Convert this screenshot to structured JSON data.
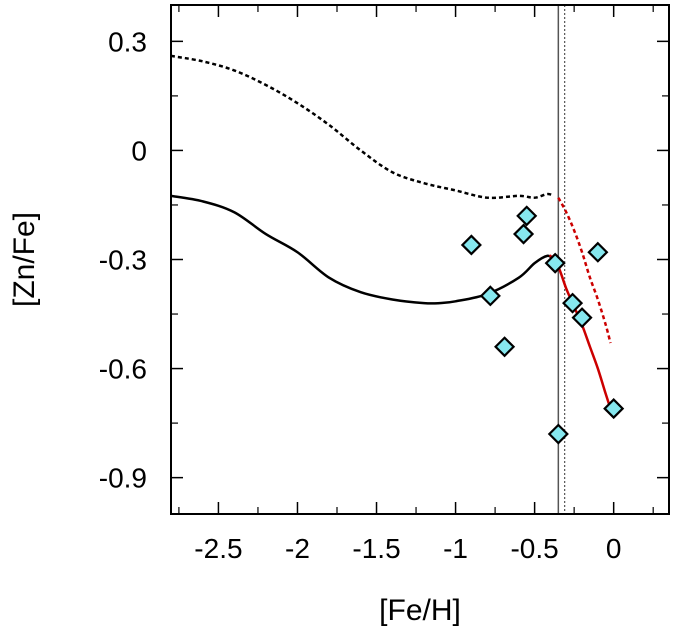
{
  "chart_data": {
    "type": "scatter",
    "xlabel": "[Fe/H]",
    "ylabel": "[Zn/Fe]",
    "xlim": [
      -2.8,
      0.35
    ],
    "ylim": [
      -1.0,
      0.4
    ],
    "x_ticks": [
      {
        "value": -2.5,
        "label": "-2.5"
      },
      {
        "value": -2.0,
        "label": "-2"
      },
      {
        "value": -1.5,
        "label": "-1.5"
      },
      {
        "value": -1.0,
        "label": "-1"
      },
      {
        "value": -0.5,
        "label": "-0.5"
      },
      {
        "value": 0.0,
        "label": "0"
      }
    ],
    "x_minor_ticks": [
      -2.75,
      -2.25,
      -1.75,
      -1.25,
      -0.75,
      -0.25,
      0.25
    ],
    "y_ticks": [
      {
        "value": 0.3,
        "label": "0.3"
      },
      {
        "value": 0.0,
        "label": "0"
      },
      {
        "value": -0.3,
        "label": "-0.3"
      },
      {
        "value": -0.6,
        "label": "-0.6"
      },
      {
        "value": -0.9,
        "label": "-0.9"
      }
    ],
    "y_minor_ticks": [
      0.15,
      -0.15,
      -0.45,
      -0.75
    ],
    "vertical_lines": [
      {
        "name": "vline-solid",
        "x": -0.35,
        "style": "solid",
        "color": "#555555"
      },
      {
        "name": "vline-dotted",
        "x": -0.31,
        "style": "dotted",
        "color": "#555555"
      }
    ],
    "series": [
      {
        "name": "model-black-dashed",
        "style": "dashed",
        "color": "#000000",
        "x": [
          -2.8,
          -2.6,
          -2.4,
          -2.2,
          -2.0,
          -1.8,
          -1.6,
          -1.4,
          -1.2,
          -1.0,
          -0.8,
          -0.6,
          -0.5,
          -0.42,
          -0.38
        ],
        "y": [
          0.26,
          0.245,
          0.22,
          0.18,
          0.13,
          0.07,
          0.0,
          -0.06,
          -0.09,
          -0.11,
          -0.13,
          -0.125,
          -0.13,
          -0.12,
          -0.125
        ]
      },
      {
        "name": "model-red-dashed",
        "style": "dashed",
        "color": "#cc0000",
        "x": [
          -0.35,
          -0.3,
          -0.25,
          -0.2,
          -0.15,
          -0.1,
          -0.05,
          -0.02
        ],
        "y": [
          -0.13,
          -0.17,
          -0.22,
          -0.28,
          -0.35,
          -0.41,
          -0.48,
          -0.53
        ]
      },
      {
        "name": "model-black-solid",
        "style": "solid",
        "color": "#000000",
        "x": [
          -2.8,
          -2.6,
          -2.4,
          -2.2,
          -2.0,
          -1.8,
          -1.6,
          -1.4,
          -1.2,
          -1.1,
          -1.0,
          -0.8,
          -0.6,
          -0.5,
          -0.42,
          -0.38
        ],
        "y": [
          -0.125,
          -0.14,
          -0.17,
          -0.23,
          -0.28,
          -0.35,
          -0.39,
          -0.41,
          -0.42,
          -0.42,
          -0.415,
          -0.395,
          -0.35,
          -0.31,
          -0.29,
          -0.3
        ]
      },
      {
        "name": "model-red-solid",
        "style": "solid",
        "color": "#cc0000",
        "x": [
          -0.4,
          -0.35,
          -0.3,
          -0.25,
          -0.2,
          -0.15,
          -0.1,
          -0.05,
          -0.02
        ],
        "y": [
          -0.29,
          -0.32,
          -0.38,
          -0.43,
          -0.48,
          -0.54,
          -0.6,
          -0.67,
          -0.71
        ]
      }
    ],
    "points": {
      "name": "observed-stars",
      "marker": "diamond",
      "fill": "#86e8ef",
      "stroke": "#000000",
      "x": [
        -0.9,
        -0.78,
        -0.69,
        -0.57,
        -0.55,
        -0.37,
        -0.35,
        -0.26,
        -0.2,
        -0.1,
        0.0
      ],
      "y": [
        -0.26,
        -0.4,
        -0.54,
        -0.23,
        -0.18,
        -0.31,
        -0.78,
        -0.42,
        -0.46,
        -0.28,
        -0.71
      ]
    }
  }
}
